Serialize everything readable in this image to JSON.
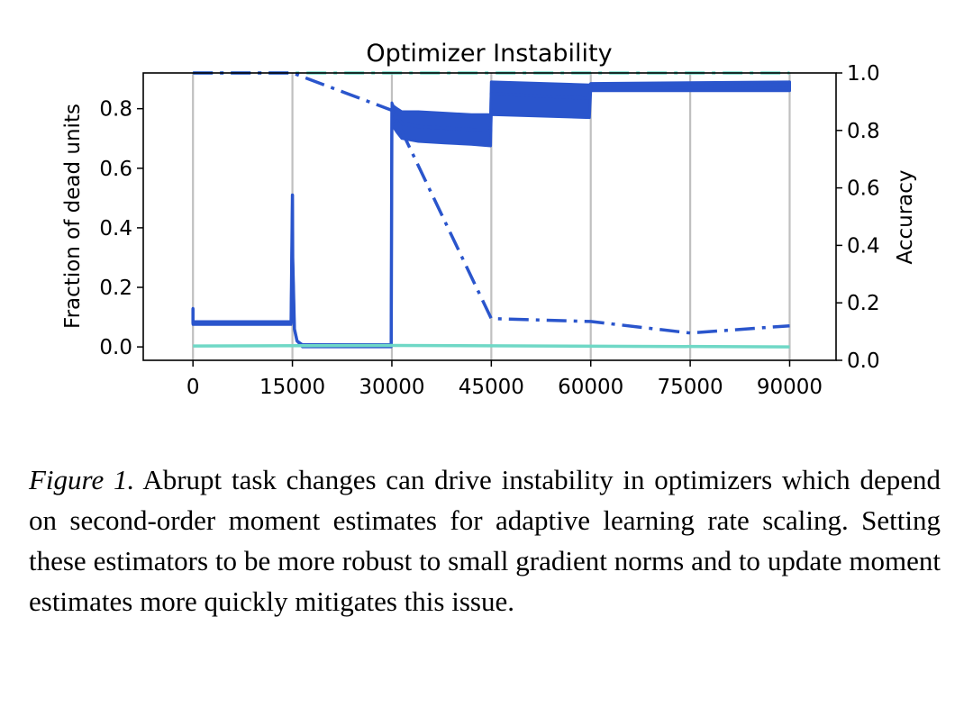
{
  "chart_data": {
    "type": "line",
    "title": "Optimizer Instability",
    "xlabel": "",
    "ylabel_left": "Fraction of dead units",
    "ylabel_right": "Accuracy",
    "xlim": [
      -7500,
      97000
    ],
    "ylim_left": [
      -0.045,
      0.92
    ],
    "ylim_right": [
      0.0,
      1.0
    ],
    "x_ticks": [
      0,
      15000,
      30000,
      45000,
      60000,
      75000,
      90000
    ],
    "y_left_ticks": [
      "0.0",
      "0.2",
      "0.4",
      "0.6",
      "0.8"
    ],
    "y_right_ticks": [
      "0.0",
      "0.2",
      "0.4",
      "0.6",
      "0.8",
      "1.0"
    ],
    "task_change_lines_x": [
      0,
      15000,
      30000,
      45000,
      60000,
      75000,
      90000
    ],
    "grid": "vertical lines at task changes",
    "colors": {
      "dark": "#2a55cc",
      "light": "#6fd8c6",
      "gridline": "#c0c0c0"
    },
    "series": [
      {
        "style": "solid",
        "color": "dark",
        "axis": "left",
        "band": true,
        "x": [
          0,
          0,
          14800,
          15000,
          15050,
          15300,
          15700,
          16500,
          29900,
          30000,
          30200,
          30800,
          31500,
          34000,
          38000,
          42000,
          44900,
          45000,
          59800,
          60000,
          90000
        ],
        "y_mid": [
          0.13,
          0.08,
          0.08,
          0.51,
          0.3,
          0.06,
          0.02,
          0.005,
          0.005,
          0.8,
          0.79,
          0.77,
          0.75,
          0.74,
          0.735,
          0.73,
          0.725,
          0.85,
          0.835,
          0.865,
          0.88
        ],
        "y_low": [
          0.13,
          0.075,
          0.075,
          0.51,
          0.3,
          0.06,
          0.02,
          0.0,
          0.0,
          0.79,
          0.74,
          0.72,
          0.7,
          0.69,
          0.685,
          0.68,
          0.675,
          0.78,
          0.77,
          0.86,
          0.86
        ],
        "y_high": [
          0.13,
          0.085,
          0.085,
          0.51,
          0.3,
          0.06,
          0.02,
          0.008,
          0.008,
          0.82,
          0.81,
          0.8,
          0.79,
          0.79,
          0.785,
          0.78,
          0.78,
          0.89,
          0.88,
          0.885,
          0.89
        ]
      },
      {
        "style": "solid",
        "color": "light",
        "axis": "left",
        "x": [
          0,
          30000,
          90000
        ],
        "y": [
          0.003,
          0.005,
          0.0
        ]
      },
      {
        "style": "dashdot",
        "color": "light",
        "axis": "right",
        "x": [
          0,
          90000
        ],
        "y": [
          1.0,
          1.0
        ]
      },
      {
        "style": "dashdot",
        "color": "dark",
        "axis": "right",
        "x": [
          0,
          15000,
          30000,
          45000,
          60000,
          75000,
          90000
        ],
        "y": [
          1.0,
          1.0,
          0.87,
          0.145,
          0.135,
          0.095,
          0.12
        ]
      }
    ]
  },
  "caption": {
    "label": "Figure 1.",
    "text": " Abrupt task changes can drive instability in optimizers which depend on second-order moment estimates for adaptive learning rate scaling. Setting these estimators to be more robust to small gradient norms and to update moment estimates more quickly mitigates this issue."
  }
}
